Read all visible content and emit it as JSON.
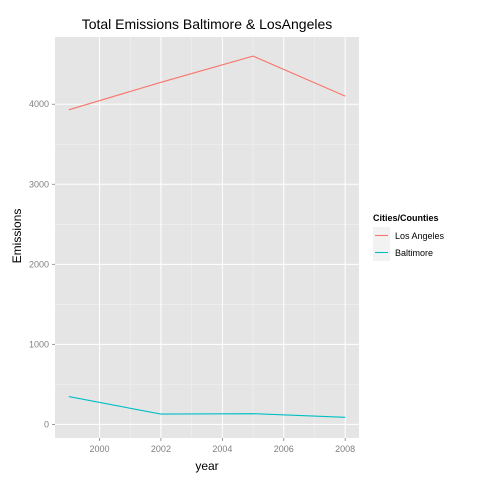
{
  "chart_data": {
    "type": "line",
    "title": "Total Emissions Baltimore & LosAngeles",
    "xlabel": "year",
    "ylabel": "Emissions",
    "x": [
      1999,
      2002,
      2005,
      2008
    ],
    "xlim": [
      1998.55,
      2008.45
    ],
    "ylim": [
      -170,
      4840
    ],
    "xticks": [
      2000,
      2002,
      2004,
      2006,
      2008
    ],
    "yticks": [
      0,
      1000,
      2000,
      3000,
      4000
    ],
    "grid": true,
    "background": "#e5e5e5",
    "legend": {
      "title": "Cities/Counties",
      "position": "right"
    },
    "series": [
      {
        "name": "Los Angeles",
        "color": "#f8766d",
        "values": [
          3931,
          4274,
          4601,
          4101
        ]
      },
      {
        "name": "Baltimore",
        "color": "#00bfc4",
        "values": [
          347,
          128,
          134,
          89
        ]
      }
    ]
  }
}
